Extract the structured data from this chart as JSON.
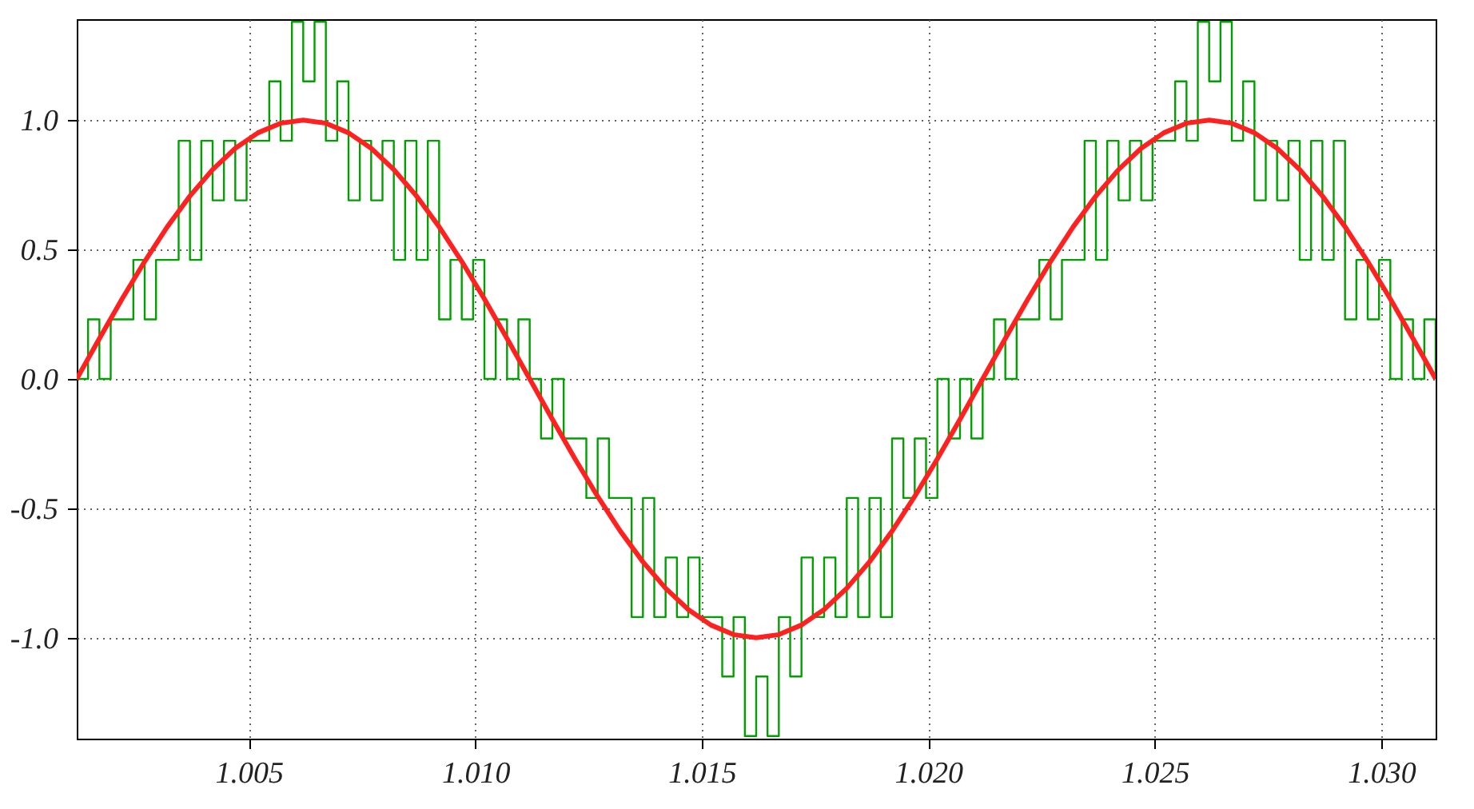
{
  "chart_data": {
    "type": "step",
    "xlim": [
      1.0012,
      1.0312
    ],
    "ylim": [
      -1.39,
      1.39
    ],
    "xticks": [
      {
        "value": 1.005,
        "label": "1.005"
      },
      {
        "value": 1.01,
        "label": "1.010"
      },
      {
        "value": 1.015,
        "label": "1.015"
      },
      {
        "value": 1.02,
        "label": "1.020"
      },
      {
        "value": 1.025,
        "label": "1.025"
      },
      {
        "value": 1.03,
        "label": "1.030"
      }
    ],
    "yticks": [
      {
        "value": -1,
        "label": "-1.0"
      },
      -0.5,
      {
        "value": 0,
        "label": "0.0"
      },
      0.5,
      {
        "value": 1,
        "label": "1.0"
      }
    ],
    "grid": true,
    "series": [
      {
        "color": "#00a000",
        "x": [
          1.0012,
          1.00145,
          1.0017,
          1.00195,
          1.0022,
          1.00245,
          1.0027,
          1.00295,
          1.0032,
          1.00345,
          1.0037,
          1.00395,
          1.0042,
          1.00445,
          1.0047,
          1.00495,
          1.0052,
          1.00545,
          1.0057,
          1.00595,
          1.0062,
          1.00645,
          1.0067,
          1.00695,
          1.0072,
          1.00745,
          1.0077,
          1.00795,
          1.0082,
          1.00845,
          1.0087,
          1.00895,
          1.0092,
          1.00945,
          1.0097,
          1.00995,
          1.0102,
          1.01045,
          1.0107,
          1.01095,
          1.0112,
          1.01145,
          1.0117,
          1.01195,
          1.0122,
          1.01245,
          1.0127,
          1.01295,
          1.0132,
          1.01345,
          1.0137,
          1.01395,
          1.0142,
          1.01445,
          1.0147,
          1.01495,
          1.0152,
          1.01545,
          1.0157,
          1.01595,
          1.0162,
          1.01645,
          1.0167,
          1.01695,
          1.0172,
          1.01745,
          1.0177,
          1.01795,
          1.0182,
          1.01845,
          1.0187,
          1.01895,
          1.0192,
          1.01945,
          1.0197,
          1.01995,
          1.0202,
          1.02045,
          1.0207,
          1.02095,
          1.0212,
          1.02145,
          1.0217,
          1.02195,
          1.0222,
          1.02245,
          1.0227,
          1.02295,
          1.0232,
          1.02345,
          1.0237,
          1.02395,
          1.0242,
          1.02445,
          1.0247,
          1.02495,
          1.0252,
          1.02545,
          1.0257,
          1.02595,
          1.0262,
          1.02645,
          1.0267,
          1.02695,
          1.0272,
          1.02745,
          1.0277,
          1.02795,
          1.0282,
          1.02845,
          1.0287,
          1.02895,
          1.0292,
          1.02945,
          1.0297,
          1.02995,
          1.0302,
          1.03045,
          1.0307,
          1.03095,
          1.0312
        ],
        "values": [
          0,
          0.23,
          0,
          0.23,
          0.23,
          0.46,
          0.23,
          0.46,
          0.46,
          0.92,
          0.46,
          0.92,
          0.69,
          0.92,
          0.69,
          0.92,
          0.92,
          1.15,
          0.92,
          1.38,
          1.15,
          1.38,
          0.92,
          1.15,
          0.69,
          0.92,
          0.69,
          0.92,
          0.46,
          0.92,
          0.46,
          0.92,
          0.23,
          0.46,
          0.23,
          0.46,
          0,
          0.23,
          0,
          0.23,
          0,
          -0.23,
          0,
          -0.23,
          -0.23,
          -0.46,
          -0.23,
          -0.46,
          -0.46,
          -0.92,
          -0.46,
          -0.92,
          -0.69,
          -0.92,
          -0.69,
          -0.92,
          -0.92,
          -1.15,
          -0.92,
          -1.38,
          -1.15,
          -1.38,
          -0.92,
          -1.15,
          -0.69,
          -0.92,
          -0.69,
          -0.92,
          -0.46,
          -0.92,
          -0.46,
          -0.92,
          -0.23,
          -0.46,
          -0.23,
          -0.46,
          0,
          -0.23,
          0,
          -0.23,
          0,
          0.23,
          0,
          0.23,
          0.23,
          0.46,
          0.23,
          0.46,
          0.46,
          0.92,
          0.46,
          0.92,
          0.69,
          0.92,
          0.69,
          0.92,
          0.92,
          1.15,
          0.92,
          1.38,
          1.15,
          1.38,
          0.92,
          1.15,
          0.69,
          0.92,
          0.69,
          0.92,
          0.46,
          0.92,
          0.46,
          0.92,
          0.23,
          0.46,
          0.23,
          0.46,
          0,
          0.23,
          0,
          0.23,
          0
        ]
      },
      {
        "type": "line",
        "color": "#ff2020",
        "x": [
          1.0012,
          1.0017,
          1.0022,
          1.0027,
          1.0032,
          1.0037,
          1.0042,
          1.0047,
          1.0052,
          1.0057,
          1.0062,
          1.0067,
          1.0072,
          1.0077,
          1.0082,
          1.0087,
          1.0092,
          1.0097,
          1.0102,
          1.0107,
          1.0112,
          1.0117,
          1.0122,
          1.0127,
          1.0132,
          1.0137,
          1.0142,
          1.0147,
          1.0152,
          1.0157,
          1.0162,
          1.0167,
          1.0172,
          1.0177,
          1.0182,
          1.0187,
          1.0192,
          1.0197,
          1.0202,
          1.0207,
          1.0212,
          1.0217,
          1.0222,
          1.0227,
          1.0232,
          1.0237,
          1.0242,
          1.0247,
          1.0252,
          1.0257,
          1.0262,
          1.0267,
          1.0272,
          1.0277,
          1.0282,
          1.0287,
          1.0292,
          1.0297,
          1.0302,
          1.0307,
          1.0312
        ],
        "values": [
          0,
          0.156,
          0.309,
          0.454,
          0.588,
          0.707,
          0.809,
          0.891,
          0.951,
          0.988,
          1,
          0.988,
          0.951,
          0.891,
          0.809,
          0.707,
          0.588,
          0.454,
          0.309,
          0.156,
          0,
          -0.156,
          -0.309,
          -0.454,
          -0.588,
          -0.707,
          -0.809,
          -0.891,
          -0.951,
          -0.988,
          -1,
          -0.988,
          -0.951,
          -0.891,
          -0.809,
          -0.707,
          -0.588,
          -0.454,
          -0.309,
          -0.156,
          0,
          0.156,
          0.309,
          0.454,
          0.588,
          0.707,
          0.809,
          0.891,
          0.951,
          0.988,
          1,
          0.988,
          0.951,
          0.891,
          0.809,
          0.707,
          0.588,
          0.454,
          0.309,
          0.156,
          0
        ]
      }
    ]
  }
}
